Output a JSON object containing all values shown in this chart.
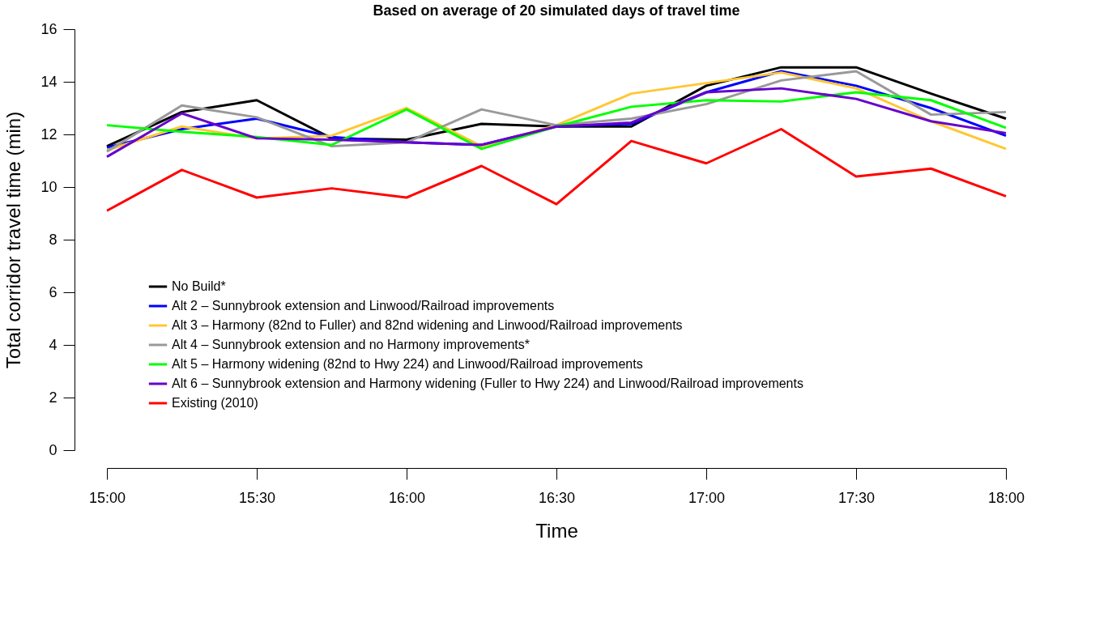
{
  "chart_data": {
    "type": "line",
    "title": "Based on average of 20 simulated days of travel time",
    "xlabel": "Time",
    "ylabel": "Total corridor travel time (min)",
    "x": [
      15.0,
      15.25,
      15.5,
      15.75,
      16.0,
      16.25,
      16.5,
      16.75,
      17.0,
      17.25,
      17.5,
      17.75,
      18.0
    ],
    "xlim": [
      15.0,
      18.0
    ],
    "xticks": [
      {
        "value": 15.0,
        "label": "15:00"
      },
      {
        "value": 15.5,
        "label": "15:30"
      },
      {
        "value": 16.0,
        "label": "16:00"
      },
      {
        "value": 16.5,
        "label": "16:30"
      },
      {
        "value": 17.0,
        "label": "17:00"
      },
      {
        "value": 17.5,
        "label": "17:30"
      },
      {
        "value": 18.0,
        "label": "18:00"
      }
    ],
    "ylim": [
      0,
      16
    ],
    "yticks": [
      0,
      2,
      4,
      6,
      8,
      10,
      12,
      14,
      16
    ],
    "grid": false,
    "legend": "bottom left",
    "marker": "none",
    "line_style": "solid",
    "series": [
      {
        "name": "No Build*",
        "color": "#000000",
        "values": [
          11.55,
          12.85,
          13.3,
          11.85,
          11.8,
          12.4,
          12.3,
          12.3,
          13.85,
          14.55,
          14.55,
          13.55,
          12.6
        ]
      },
      {
        "name": "Alt 2 – Sunnybrook extension and Linwood/Railroad improvements",
        "color": "#0000ff",
        "values": [
          11.5,
          12.2,
          12.6,
          11.9,
          11.7,
          11.6,
          12.3,
          12.4,
          13.6,
          14.4,
          13.85,
          13.0,
          11.95
        ]
      },
      {
        "name": "Alt 3 – Harmony (82nd to Fuller) and 82nd widening and Linwood/Railroad improvements",
        "color": "#ffc733",
        "values": [
          11.4,
          12.3,
          11.85,
          11.95,
          13.0,
          11.55,
          12.35,
          13.55,
          13.95,
          14.35,
          13.75,
          12.5,
          11.45
        ]
      },
      {
        "name": "Alt 4 – Sunnybrook extension and no Harmony improvements*",
        "color": "#999999",
        "values": [
          11.35,
          13.1,
          12.65,
          11.55,
          11.7,
          12.95,
          12.35,
          12.6,
          13.15,
          14.05,
          14.4,
          12.75,
          12.85
        ]
      },
      {
        "name": "Alt 5 – Harmony widening (82nd to Hwy 224) and Linwood/Railroad improvements",
        "color": "#00ff00",
        "values": [
          12.35,
          12.1,
          11.9,
          11.6,
          12.95,
          11.45,
          12.3,
          13.05,
          13.3,
          13.25,
          13.6,
          13.3,
          12.25
        ]
      },
      {
        "name": "Alt 6 – Sunnybrook extension and Harmony widening (Fuller to Hwy 224) and Linwood/Railroad improvements",
        "color": "#6600cc",
        "values": [
          11.15,
          12.8,
          11.85,
          11.8,
          11.7,
          11.6,
          12.3,
          12.45,
          13.6,
          13.75,
          13.35,
          12.5,
          12.05
        ]
      },
      {
        "name": "Existing (2010)",
        "color": "#ff0000",
        "values": [
          9.1,
          10.65,
          9.6,
          9.95,
          9.6,
          10.8,
          9.35,
          11.75,
          10.9,
          12.2,
          10.4,
          10.7,
          9.65
        ]
      }
    ]
  }
}
